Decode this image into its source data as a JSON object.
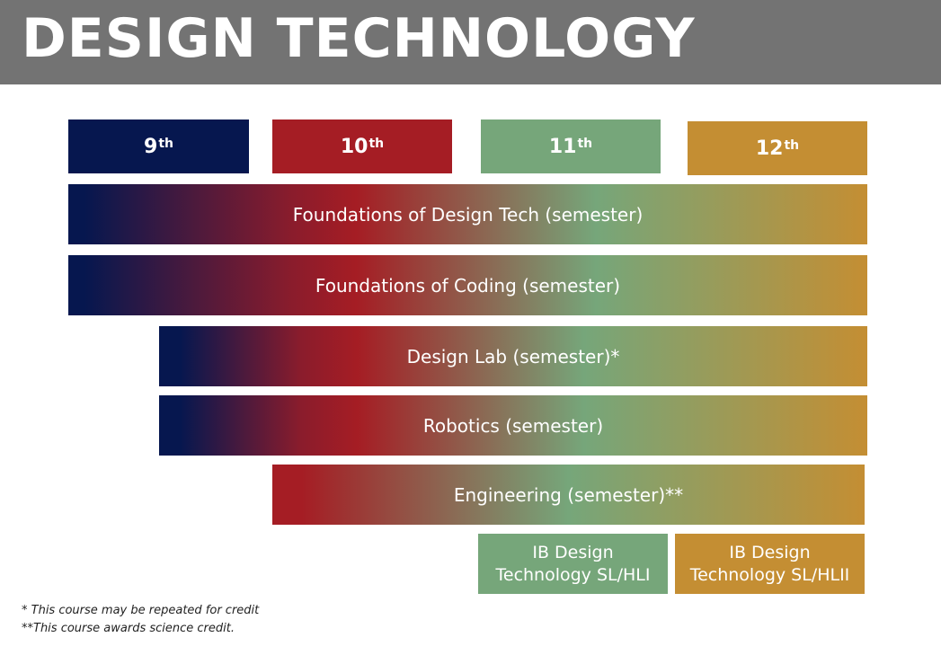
{
  "header": {
    "title": "DESIGN TECHNOLOGY"
  },
  "grades": [
    {
      "number": "9",
      "suffix": "th"
    },
    {
      "number": "10",
      "suffix": "th"
    },
    {
      "number": "11",
      "suffix": "th"
    },
    {
      "number": "12",
      "suffix": "th"
    }
  ],
  "courses": [
    {
      "label": "Foundations of Design Tech (semester)"
    },
    {
      "label": "Foundations of Coding (semester)"
    },
    {
      "label": "Design Lab (semester)*"
    },
    {
      "label": "Robotics (semester)"
    },
    {
      "label": "Engineering (semester)**"
    }
  ],
  "ib_courses": [
    {
      "line1": "IB Design",
      "line2": "Technology SL/HLI"
    },
    {
      "line1": "IB Design",
      "line2": "Technology SL/HLII"
    }
  ],
  "footnotes": [
    "* This course may be repeated for credit",
    "**This course awards science credit."
  ],
  "colors": {
    "header_bg": "#737373",
    "grade_9": "#06174f",
    "grade_10": "#a51d24",
    "grade_11": "#76a67a",
    "grade_12": "#c48e33"
  }
}
